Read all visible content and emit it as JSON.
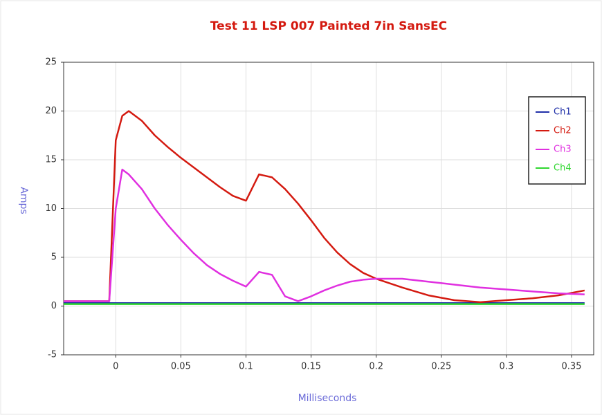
{
  "chart_data": {
    "type": "line",
    "title": "Test 11 LSP 007 Painted 7in SansEC",
    "x_label": "Milliseconds",
    "y_label": "Amps",
    "x": [
      -0.04,
      -0.02,
      -0.005,
      0,
      0.005,
      0.01,
      0.02,
      0.03,
      0.04,
      0.05,
      0.06,
      0.07,
      0.08,
      0.09,
      0.1,
      0.11,
      0.12,
      0.13,
      0.14,
      0.15,
      0.16,
      0.17,
      0.18,
      0.19,
      0.2,
      0.22,
      0.24,
      0.26,
      0.28,
      0.3,
      0.32,
      0.34,
      0.36
    ],
    "series": [
      {
        "name": "Ch1",
        "color": "#1f2fa8",
        "values": [
          0.3,
          0.3,
          0.3,
          0.3,
          0.3,
          0.3,
          0.3,
          0.3,
          0.3,
          0.3,
          0.3,
          0.3,
          0.3,
          0.3,
          0.3,
          0.3,
          0.3,
          0.3,
          0.3,
          0.3,
          0.3,
          0.3,
          0.3,
          0.3,
          0.3,
          0.3,
          0.3,
          0.3,
          0.3,
          0.3,
          0.3,
          0.3,
          0.3
        ]
      },
      {
        "name": "Ch2",
        "color": "#d41a10",
        "values": [
          0.5,
          0.5,
          0.5,
          17,
          19.5,
          20,
          19,
          17.5,
          16.3,
          15.2,
          14.2,
          13.2,
          12.2,
          11.3,
          10.8,
          13.5,
          13.2,
          12,
          10.5,
          8.8,
          7,
          5.5,
          4.3,
          3.4,
          2.8,
          1.9,
          1.1,
          0.6,
          0.4,
          0.6,
          0.8,
          1.1,
          1.6
        ]
      },
      {
        "name": "Ch3",
        "color": "#e030e0",
        "values": [
          0.5,
          0.5,
          0.5,
          10,
          14,
          13.5,
          12,
          10,
          8.3,
          6.8,
          5.4,
          4.2,
          3.3,
          2.6,
          2,
          3.5,
          3.2,
          1,
          0.5,
          1,
          1.6,
          2.1,
          2.5,
          2.7,
          2.8,
          2.8,
          2.5,
          2.2,
          1.9,
          1.7,
          1.5,
          1.3,
          1.2
        ]
      },
      {
        "name": "Ch4",
        "color": "#2ed62e",
        "values": [
          0.2,
          0.2,
          0.2,
          0.2,
          0.2,
          0.2,
          0.2,
          0.2,
          0.2,
          0.2,
          0.2,
          0.2,
          0.2,
          0.2,
          0.2,
          0.2,
          0.2,
          0.2,
          0.2,
          0.2,
          0.2,
          0.2,
          0.2,
          0.2,
          0.2,
          0.2,
          0.2,
          0.2,
          0.2,
          0.2,
          0.2,
          0.2,
          0.2
        ]
      }
    ],
    "xlim": [
      -0.04,
      0.367
    ],
    "ylim": [
      -5,
      25
    ],
    "xticks": [
      0,
      0.05,
      0.1,
      0.15,
      0.2,
      0.25,
      0.3,
      0.35
    ],
    "yticks": [
      -5,
      0,
      5,
      10,
      15,
      20,
      25
    ],
    "grid": true,
    "legend": "upper right"
  }
}
